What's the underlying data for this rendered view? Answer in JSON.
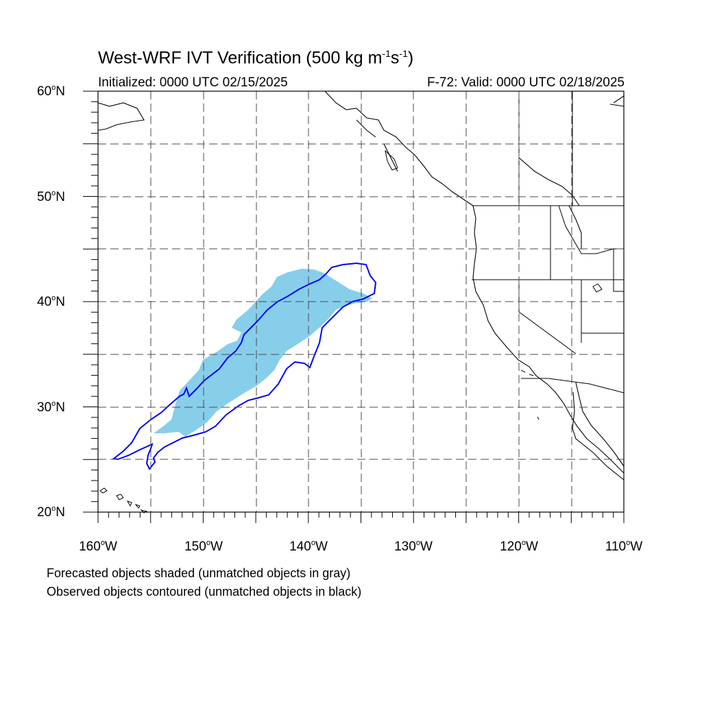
{
  "title": {
    "main": "West-WRF IVT Verification (500 kg m",
    "exp1": "-1",
    "mid": "s",
    "exp2": "-1",
    "end": ")"
  },
  "init_text": "Initialized: 0000 UTC 02/15/2025",
  "valid_text": "F-72: Valid: 0000 UTC 02/18/2025",
  "lat_labels": [
    {
      "value": "60",
      "suffix": "N"
    },
    {
      "value": "50",
      "suffix": "N"
    },
    {
      "value": "40",
      "suffix": "N"
    },
    {
      "value": "30",
      "suffix": "N"
    },
    {
      "value": "20",
      "suffix": "N"
    }
  ],
  "lon_labels": [
    {
      "value": "160",
      "suffix": "W"
    },
    {
      "value": "150",
      "suffix": "W"
    },
    {
      "value": "140",
      "suffix": "W"
    },
    {
      "value": "130",
      "suffix": "W"
    },
    {
      "value": "120",
      "suffix": "W"
    },
    {
      "value": "110",
      "suffix": "W"
    }
  ],
  "legend_notes": [
    "Forecasted objects shaded (unmatched objects in gray)",
    "Observed objects contoured (unmatched objects in black)"
  ],
  "colors": {
    "forecast_fill": "#87ceeb",
    "observed_contour": "#0000ff",
    "coastline": "#000000",
    "grid": "#4a4a4a"
  },
  "map_extent": {
    "lon_min": -160,
    "lon_max": -110,
    "lat_min": 20,
    "lat_max": 60
  }
}
